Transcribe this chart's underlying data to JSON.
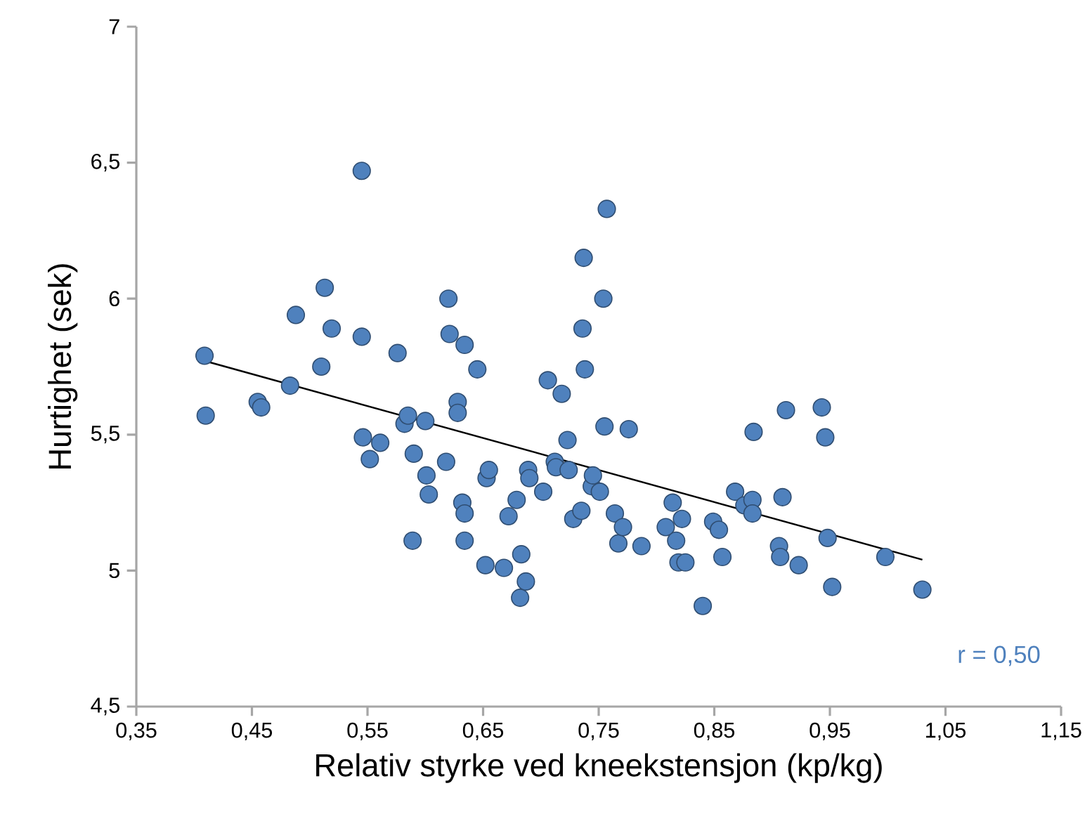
{
  "chart_data": {
    "type": "scatter",
    "xlabel": "Relativ styrke ved kneekstensjon (kp/kg)",
    "ylabel": "Hurtighet (sek)",
    "xlim": [
      0.35,
      1.15
    ],
    "ylim": [
      4.5,
      7
    ],
    "xticks": [
      {
        "value": 0.35,
        "label": "0,35"
      },
      {
        "value": 0.45,
        "label": "0,45"
      },
      {
        "value": 0.55,
        "label": "0,55"
      },
      {
        "value": 0.65,
        "label": "0,65"
      },
      {
        "value": 0.75,
        "label": "0,75"
      },
      {
        "value": 0.85,
        "label": "0,85"
      },
      {
        "value": 0.95,
        "label": "0,95"
      },
      {
        "value": 1.05,
        "label": "1,05"
      },
      {
        "value": 1.15,
        "label": "1,15"
      }
    ],
    "yticks": [
      {
        "value": 4.5,
        "label": "4,5"
      },
      5,
      {
        "value": 5.5,
        "label": "5,5"
      },
      6,
      {
        "value": 6.5,
        "label": "6,5"
      },
      7
    ],
    "marker": "circle",
    "annotations": [
      "r = 0,50"
    ],
    "series": [
      {
        "color": "#4f81bd",
        "x": [
          0.409,
          0.41,
          0.455,
          0.458,
          0.483,
          0.488,
          0.51,
          0.513,
          0.519,
          0.545,
          0.545,
          0.546,
          0.552,
          0.561,
          0.576,
          0.582,
          0.585,
          0.589,
          0.59,
          0.6,
          0.601,
          0.603,
          0.618,
          0.62,
          0.621,
          0.628,
          0.628,
          0.634,
          0.632,
          0.634,
          0.634,
          0.645,
          0.652,
          0.653,
          0.655,
          0.668,
          0.672,
          0.679,
          0.682,
          0.683,
          0.687,
          0.689,
          0.69,
          0.706,
          0.702,
          0.712,
          0.713,
          0.718,
          0.723,
          0.724,
          0.728,
          0.736,
          0.737,
          0.738,
          0.735,
          0.744,
          0.745,
          0.751,
          0.754,
          0.757,
          0.755,
          0.764,
          0.767,
          0.771,
          0.776,
          0.787,
          0.808,
          0.814,
          0.817,
          0.819,
          0.825,
          0.822,
          0.84,
          0.849,
          0.854,
          0.857,
          0.868,
          0.876,
          0.883,
          0.883,
          0.884,
          0.906,
          0.907,
          0.909,
          0.912,
          0.923,
          0.943,
          0.946,
          0.948,
          0.952,
          0.998,
          1.03
        ],
        "values": [
          5.79,
          5.57,
          5.62,
          5.6,
          5.68,
          5.94,
          5.75,
          6.04,
          5.89,
          5.86,
          6.47,
          5.49,
          5.41,
          5.47,
          5.8,
          5.54,
          5.57,
          5.11,
          5.43,
          5.55,
          5.35,
          5.28,
          5.4,
          6.0,
          5.87,
          5.62,
          5.58,
          5.83,
          5.25,
          5.21,
          5.11,
          5.74,
          5.02,
          5.34,
          5.37,
          5.01,
          5.2,
          5.26,
          4.9,
          5.06,
          4.96,
          5.37,
          5.34,
          5.7,
          5.29,
          5.4,
          5.38,
          5.65,
          5.48,
          5.37,
          5.19,
          5.89,
          6.15,
          5.74,
          5.22,
          5.31,
          5.35,
          5.29,
          6.0,
          6.33,
          5.53,
          5.21,
          5.1,
          5.16,
          5.52,
          5.09,
          5.16,
          5.25,
          5.11,
          5.03,
          5.03,
          5.19,
          4.87,
          5.18,
          5.15,
          5.05,
          5.29,
          5.24,
          5.26,
          5.21,
          5.51,
          5.09,
          5.05,
          5.27,
          5.59,
          5.02,
          5.6,
          5.49,
          5.12,
          4.94,
          5.05,
          4.93
        ]
      },
      {
        "type": "line",
        "color": "#000000",
        "marker": "none",
        "x": [
          0.41,
          1.03
        ],
        "values": [
          5.77,
          5.04
        ]
      }
    ]
  }
}
